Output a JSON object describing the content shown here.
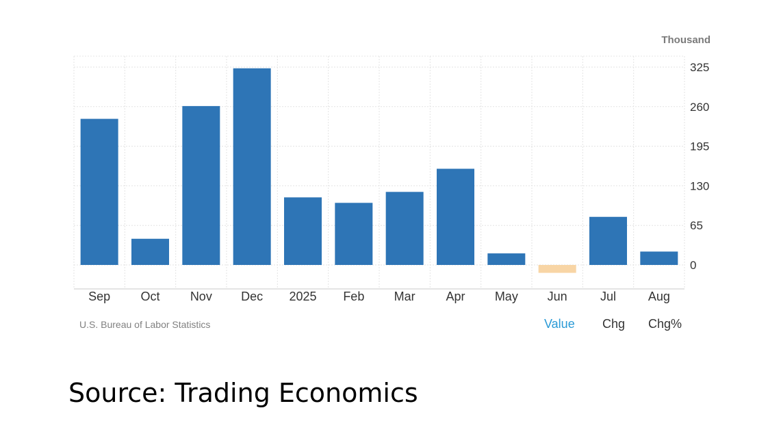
{
  "chart_data": {
    "type": "bar",
    "categories": [
      "Sep",
      "Oct",
      "Nov",
      "Dec",
      "2025",
      "Feb",
      "Mar",
      "Apr",
      "May",
      "Jun",
      "Jul",
      "Aug"
    ],
    "values": [
      240,
      43,
      261,
      323,
      111,
      102,
      120,
      158,
      19,
      -13,
      79,
      22
    ],
    "unit_label": "Thousand",
    "yticks": [
      0,
      65,
      130,
      195,
      260,
      325
    ],
    "ylim": [
      -40,
      345
    ],
    "grid": true,
    "y_axis_side": "right",
    "colors": {
      "positive": "#2e75b6",
      "negative": "#f8d5a5"
    }
  },
  "source_label": "U.S. Bureau of Labor Statistics",
  "toggles": {
    "value": "Value",
    "chg": "Chg",
    "chgpct": "Chg%"
  },
  "caption": "Source: Trading Economics"
}
